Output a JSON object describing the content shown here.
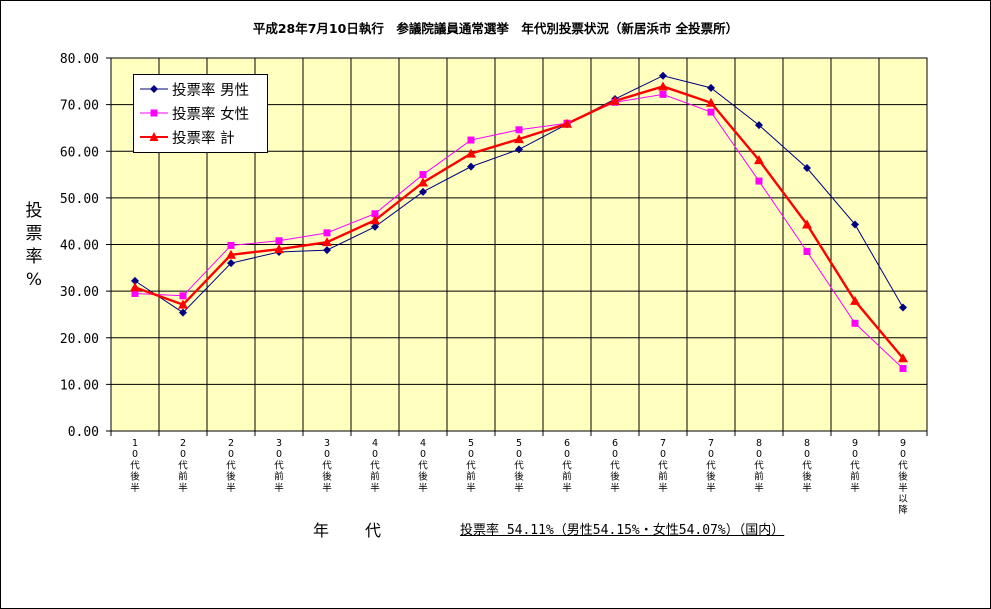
{
  "chart_data": {
    "type": "line",
    "title": "平成28年7月10日執行　参議院議員通常選挙　年代別投票状況（新居浜市 全投票所）",
    "xlabel": "年　代",
    "ylabel": "投票率%",
    "ylim": [
      0,
      80
    ],
    "yticks": [
      "0.00",
      "10.00",
      "20.00",
      "30.00",
      "40.00",
      "50.00",
      "60.00",
      "70.00",
      "80.00"
    ],
    "grid": true,
    "legend_position": "top-left",
    "categories": [
      "10代後半",
      "20代前半",
      "20代後半",
      "30代前半",
      "30代後半",
      "40代前半",
      "40代後半",
      "50代前半",
      "50代後半",
      "60代前半",
      "60代後半",
      "70代前半",
      "70代後半",
      "80代前半",
      "80代後半",
      "90代前半",
      "90代後半以降"
    ],
    "series": [
      {
        "name": "投票率 男性",
        "color": "#000080",
        "marker": "diamond",
        "values": [
          32.2,
          25.4,
          36.0,
          38.4,
          38.8,
          43.8,
          51.3,
          56.7,
          60.4,
          65.8,
          71.2,
          76.2,
          73.6,
          65.6,
          56.4,
          44.3,
          26.5
        ]
      },
      {
        "name": "投票率 女性",
        "color": "#ff00ff",
        "marker": "square",
        "values": [
          29.5,
          29.0,
          39.8,
          40.8,
          42.5,
          46.6,
          55.0,
          62.4,
          64.6,
          66.0,
          70.5,
          72.2,
          68.4,
          53.6,
          38.5,
          23.1,
          13.4
        ]
      },
      {
        "name": "投票率 計",
        "color": "#ff0000",
        "marker": "triangle",
        "values": [
          30.8,
          27.1,
          37.8,
          39.0,
          40.5,
          45.2,
          53.3,
          59.5,
          62.6,
          65.9,
          70.8,
          73.9,
          70.4,
          58.1,
          44.3,
          27.9,
          15.6
        ]
      }
    ],
    "plot_background": "#ffffc0",
    "annotation": "投票率 54.11%（男性54.15%・女性54.07%）（国内）"
  }
}
